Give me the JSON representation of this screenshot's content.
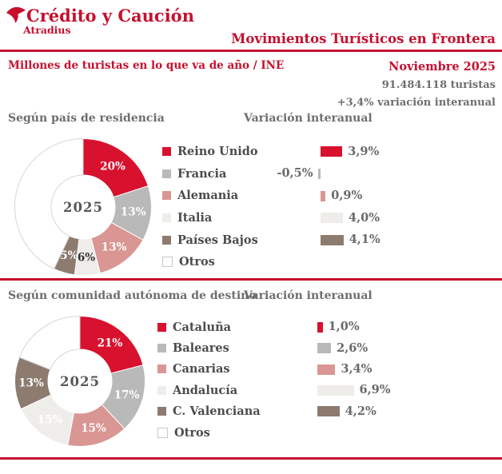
{
  "header": {
    "logo_title": "Crédito y Caución",
    "logo_subtitle": "Atradius",
    "logo_icon": "bird-swallow-icon",
    "title": "Movimientos Turísticos en Frontera"
  },
  "subheader": {
    "left": "Millones de turistas en lo que va de año / INE",
    "period": "Noviembre 2025",
    "total": "91.484.118 turistas",
    "variation": "+3,4% variación interanual"
  },
  "colors": {
    "brand_red": "#c5102e",
    "red": "#d8112f",
    "gray": "#b9b9b9",
    "salmon": "#d99693",
    "light": "#efedea",
    "brown": "#8d7b6f",
    "white": "#ffffff",
    "heading_gray": "#6e6e6e",
    "legend_text": "#4c4c4c",
    "value_text": "#696969",
    "center_text": "#575757"
  },
  "chart_data": [
    {
      "type": "pie",
      "title": "Según país de residencia",
      "center_label": "2025",
      "legend_position": "right",
      "categories": [
        "Reino Unido",
        "Francia",
        "Alemania",
        "Italia",
        "Países Bajos",
        "Otros"
      ],
      "values": [
        20,
        13,
        13,
        6,
        5,
        43
      ],
      "labels": [
        "20%",
        "13%",
        "13%",
        "6%",
        "5%",
        ""
      ],
      "colors": [
        "red",
        "gray",
        "salmon",
        "light",
        "brown",
        "white"
      ],
      "label_colors": [
        "#ffffff",
        "#ffffff",
        "#ffffff",
        "#333333",
        "#ffffff",
        ""
      ],
      "variation": {
        "type": "bar",
        "title": "Variación interanual",
        "values": [
          3.9,
          -0.5,
          0.9,
          4.0,
          4.1,
          null
        ],
        "labels": [
          "3,9%",
          "-0,5%",
          "0,9%",
          "4,0%",
          "4,1%",
          ""
        ]
      }
    },
    {
      "type": "pie",
      "title": "Según comunidad autónoma de destino",
      "center_label": "2025",
      "legend_position": "right",
      "categories": [
        "Cataluña",
        "Baleares",
        "Canarias",
        "Andalucía",
        "C. Valenciana",
        "Otros"
      ],
      "values": [
        21,
        17,
        15,
        15,
        13,
        19
      ],
      "labels": [
        "21%",
        "17%",
        "15%",
        "15%",
        "13%",
        ""
      ],
      "colors": [
        "red",
        "gray",
        "salmon",
        "light",
        "brown",
        "white"
      ],
      "label_colors": [
        "#ffffff",
        "#ffffff",
        "#ffffff",
        "#ffffff",
        "#ffffff",
        ""
      ],
      "variation": {
        "type": "bar",
        "title": "Variación interanual",
        "values": [
          1.0,
          2.6,
          3.4,
          6.9,
          4.2,
          null
        ],
        "labels": [
          "1,0%",
          "2,6%",
          "3,4%",
          "6,9%",
          "4,2%",
          ""
        ]
      }
    }
  ]
}
